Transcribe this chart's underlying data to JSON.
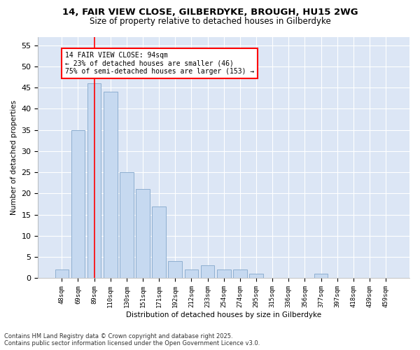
{
  "title_line1": "14, FAIR VIEW CLOSE, GILBERDYKE, BROUGH, HU15 2WG",
  "title_line2": "Size of property relative to detached houses in Gilberdyke",
  "xlabel": "Distribution of detached houses by size in Gilberdyke",
  "ylabel": "Number of detached properties",
  "categories": [
    "48sqm",
    "69sqm",
    "89sqm",
    "110sqm",
    "130sqm",
    "151sqm",
    "171sqm",
    "192sqm",
    "212sqm",
    "233sqm",
    "254sqm",
    "274sqm",
    "295sqm",
    "315sqm",
    "336sqm",
    "356sqm",
    "377sqm",
    "397sqm",
    "418sqm",
    "439sqm",
    "459sqm"
  ],
  "values": [
    2,
    35,
    46,
    44,
    25,
    21,
    17,
    4,
    2,
    3,
    2,
    2,
    1,
    0,
    0,
    0,
    1,
    0,
    0,
    0,
    0
  ],
  "bar_color": "#c6d9f0",
  "bar_edge_color": "#8eafd0",
  "red_line_index": 2,
  "annotation_text": "14 FAIR VIEW CLOSE: 94sqm\n← 23% of detached houses are smaller (46)\n75% of semi-detached houses are larger (153) →",
  "annotation_box_color": "white",
  "annotation_box_edge": "red",
  "ylim": [
    0,
    57
  ],
  "yticks": [
    0,
    5,
    10,
    15,
    20,
    25,
    30,
    35,
    40,
    45,
    50,
    55
  ],
  "footer_line1": "Contains HM Land Registry data © Crown copyright and database right 2025.",
  "footer_line2": "Contains public sector information licensed under the Open Government Licence v3.0.",
  "fig_bg_color": "#ffffff",
  "plot_bg_color": "#dce6f5"
}
